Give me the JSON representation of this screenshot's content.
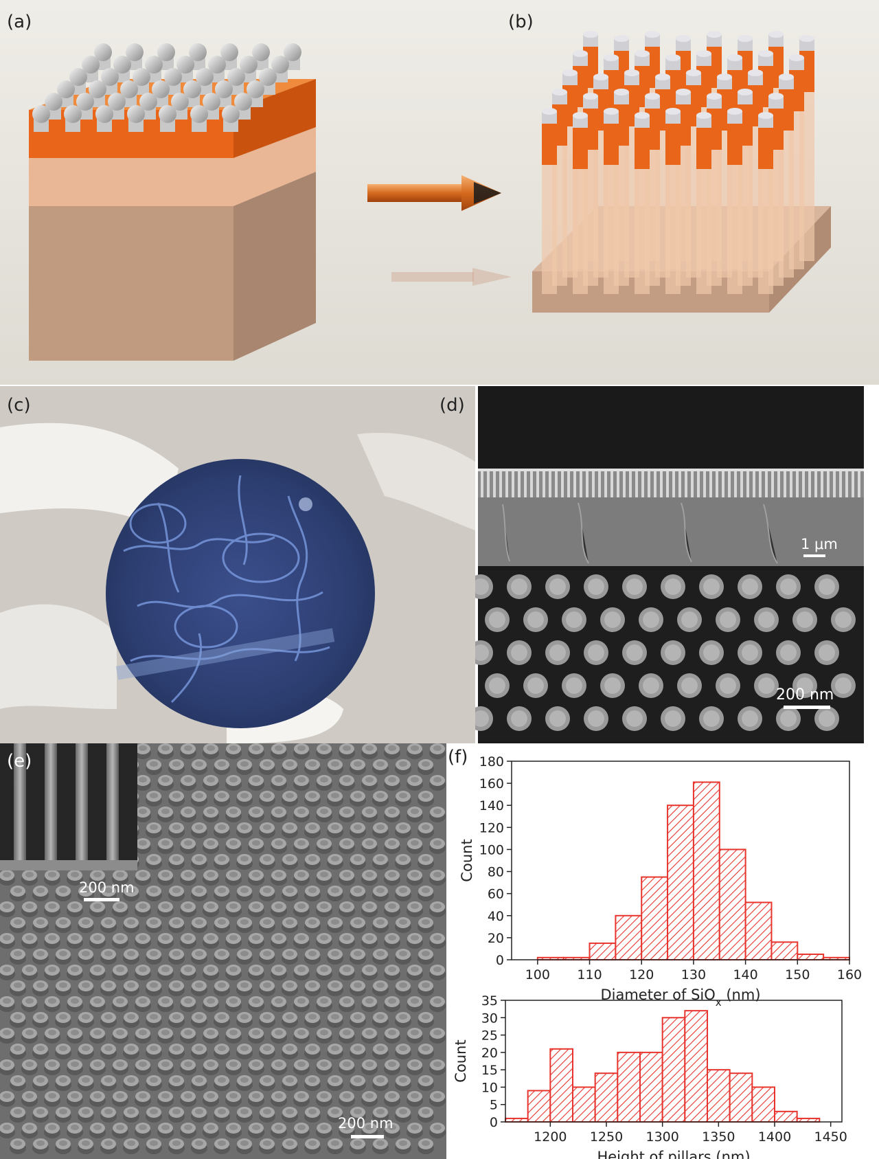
{
  "panels": {
    "a": "(a)",
    "b": "(b)",
    "c": "(c)",
    "d": "(d)",
    "e": "(e)",
    "f": "(f)"
  },
  "scale_bars": {
    "d_top": "1 μm",
    "d_bottom": "200 nm",
    "e_inset": "200 nm",
    "e_main": "200 nm"
  },
  "colors": {
    "hist": "#e8342c",
    "orange": "#e8651a",
    "background_top": "#eeece6"
  },
  "chart_data": [
    {
      "type": "bar",
      "xlabel_main": "Diameter of SiO",
      "xlabel_sub": "x",
      "xlabel_tail": " (nm)",
      "ylabel": "Count",
      "xlim": [
        95,
        160
      ],
      "ylim": [
        0,
        180
      ],
      "xticks": [
        100,
        110,
        120,
        130,
        140,
        150,
        160
      ],
      "yticks": [
        0,
        20,
        40,
        60,
        80,
        100,
        120,
        140,
        160,
        180
      ],
      "bin_width": 5,
      "bins": [
        {
          "x0": 100,
          "value": 2
        },
        {
          "x0": 105,
          "value": 2
        },
        {
          "x0": 110,
          "value": 15
        },
        {
          "x0": 115,
          "value": 40
        },
        {
          "x0": 120,
          "value": 75
        },
        {
          "x0": 125,
          "value": 140
        },
        {
          "x0": 130,
          "value": 161
        },
        {
          "x0": 135,
          "value": 100
        },
        {
          "x0": 140,
          "value": 52
        },
        {
          "x0": 145,
          "value": 16
        },
        {
          "x0": 150,
          "value": 5
        },
        {
          "x0": 155,
          "value": 2
        }
      ]
    },
    {
      "type": "bar",
      "xlabel": "Height of pillars (nm)",
      "ylabel": "Count",
      "xlim": [
        1160,
        1460
      ],
      "ylim": [
        0,
        35
      ],
      "xticks": [
        1200,
        1250,
        1300,
        1350,
        1400,
        1450
      ],
      "yticks": [
        0,
        5,
        10,
        15,
        20,
        25,
        30,
        35
      ],
      "bin_width": 20,
      "bins": [
        {
          "x0": 1160,
          "value": 1
        },
        {
          "x0": 1180,
          "value": 9
        },
        {
          "x0": 1200,
          "value": 21
        },
        {
          "x0": 1220,
          "value": 10
        },
        {
          "x0": 1240,
          "value": 14
        },
        {
          "x0": 1260,
          "value": 20
        },
        {
          "x0": 1280,
          "value": 20
        },
        {
          "x0": 1300,
          "value": 30
        },
        {
          "x0": 1320,
          "value": 32
        },
        {
          "x0": 1340,
          "value": 15
        },
        {
          "x0": 1360,
          "value": 14
        },
        {
          "x0": 1380,
          "value": 10
        },
        {
          "x0": 1400,
          "value": 3
        },
        {
          "x0": 1420,
          "value": 1
        }
      ]
    }
  ]
}
